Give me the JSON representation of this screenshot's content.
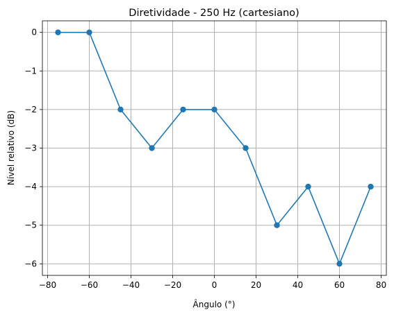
{
  "chart_data": {
    "type": "line",
    "title": "Diretividade - 250 Hz (cartesiano)",
    "xlabel": "Ângulo (°)",
    "ylabel": "Nível relativo (dB)",
    "x": [
      -75,
      -60,
      -45,
      -30,
      -15,
      0,
      15,
      30,
      45,
      60,
      75
    ],
    "series": [
      {
        "values": [
          0,
          0,
          -2,
          -3,
          -2,
          -2,
          -3,
          -5,
          -4,
          -6,
          -4
        ]
      }
    ],
    "xlim": [
      -82.5,
      82.5
    ],
    "ylim": [
      -6.3,
      0.3
    ],
    "xticks": [
      -80,
      -60,
      -40,
      -20,
      0,
      20,
      40,
      60,
      80
    ],
    "yticks": [
      0,
      -1,
      -2,
      -3,
      -4,
      -5,
      -6
    ],
    "grid": true,
    "marker": "circle",
    "line_color": "#1f77b4"
  }
}
